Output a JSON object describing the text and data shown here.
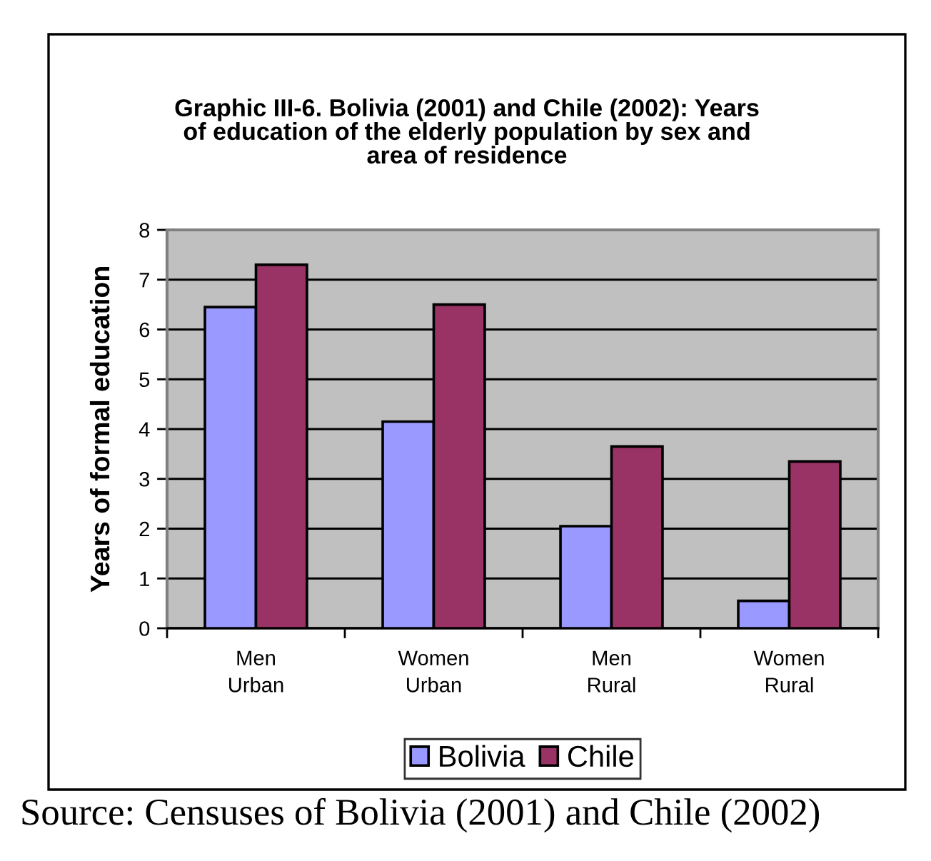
{
  "chart_data": {
    "type": "bar",
    "title": "Graphic III-6. Bolivia (2001) and Chile (2002): Years\nof education of the elderly population by sex and\narea of residence",
    "ylabel": "Years of formal education",
    "categories": [
      "Men\nUrban",
      "Women\nUrban",
      "Men\nRural",
      "Women\nRural"
    ],
    "series": [
      {
        "name": "Bolivia",
        "color": "#9999ff",
        "values": [
          6.45,
          4.15,
          2.05,
          0.55
        ]
      },
      {
        "name": "Chile",
        "color": "#993366",
        "values": [
          7.3,
          6.5,
          3.65,
          3.35
        ]
      }
    ],
    "ylim": [
      0,
      8
    ],
    "yticks": [
      0,
      1,
      2,
      3,
      4,
      5,
      6,
      7,
      8
    ],
    "grid": "y",
    "legend": "bottom",
    "annotations": [
      "Source: Censuses of Bolivia (2001) and Chile (2002)"
    ]
  }
}
